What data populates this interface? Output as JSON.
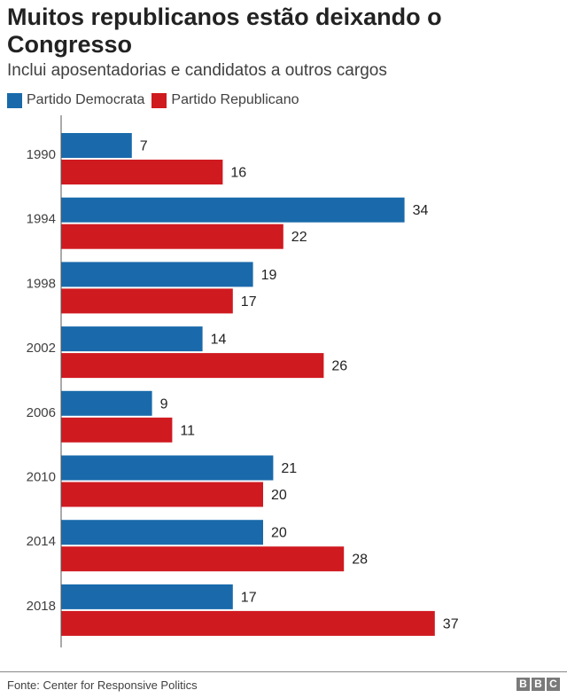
{
  "chart_data": {
    "type": "bar",
    "orientation": "horizontal",
    "title": "Muitos republicanos estão deixando o Congresso",
    "subtitle": "Inclui aposentadorias e candidatos a outros cargos",
    "categories": [
      "1990",
      "1994",
      "1998",
      "2002",
      "2006",
      "2010",
      "2014",
      "2018"
    ],
    "series": [
      {
        "name": "Partido Democrata",
        "color": "#1a6aab",
        "values": [
          7,
          34,
          19,
          14,
          9,
          21,
          20,
          17
        ]
      },
      {
        "name": "Partido Republicano",
        "color": "#cf1a20",
        "values": [
          16,
          22,
          17,
          26,
          11,
          20,
          28,
          37
        ]
      }
    ],
    "xlim": [
      0,
      40
    ],
    "grid": false,
    "data_labels": true,
    "legend_position": "top-left"
  },
  "footer": {
    "source": "Fonte: Center for Responsive Politics",
    "logo_letters": [
      "B",
      "B",
      "C"
    ]
  }
}
